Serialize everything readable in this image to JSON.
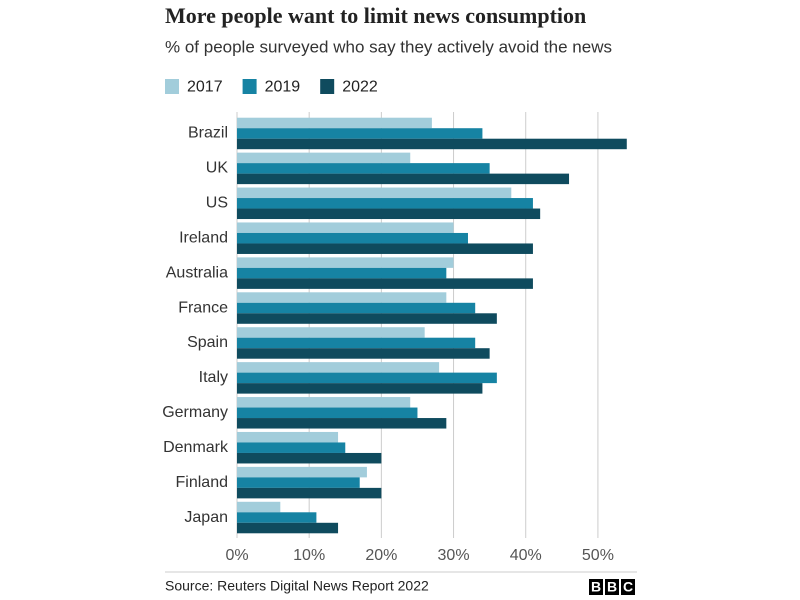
{
  "chart_data": {
    "type": "bar",
    "orientation": "horizontal",
    "title": "More people want to limit news consumption",
    "subtitle": "% of people surveyed who say they actively avoid the news",
    "categories": [
      "Brazil",
      "UK",
      "US",
      "Ireland",
      "Australia",
      "France",
      "Spain",
      "Italy",
      "Germany",
      "Denmark",
      "Finland",
      "Japan"
    ],
    "series": [
      {
        "name": "2017",
        "color": "#a2cddb",
        "values": [
          27,
          24,
          38,
          30,
          30,
          29,
          26,
          28,
          24,
          14,
          18,
          6
        ]
      },
      {
        "name": "2019",
        "color": "#1683a3",
        "values": [
          34,
          35,
          41,
          32,
          29,
          33,
          33,
          36,
          25,
          15,
          17,
          11
        ]
      },
      {
        "name": "2022",
        "color": "#0f4b5e",
        "values": [
          54,
          46,
          42,
          41,
          41,
          36,
          35,
          34,
          29,
          20,
          20,
          14
        ]
      }
    ],
    "xlim": [
      0,
      55
    ],
    "xticks": [
      {
        "value": 0,
        "label": "0%"
      },
      {
        "value": 10,
        "label": "10%"
      },
      {
        "value": 20,
        "label": "20%"
      },
      {
        "value": 30,
        "label": "30%"
      },
      {
        "value": 40,
        "label": "40%"
      },
      {
        "value": 50,
        "label": "50%"
      }
    ],
    "grid": true,
    "legend": "top-left",
    "source": "Source: Reuters Digital News Report 2022",
    "logo": [
      "B",
      "B",
      "C"
    ]
  }
}
